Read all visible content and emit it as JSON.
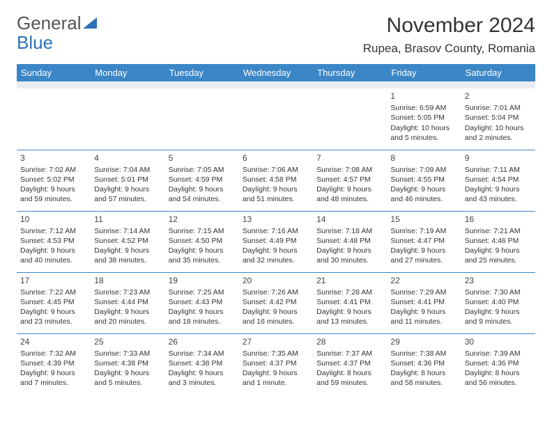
{
  "logo": {
    "part1": "General",
    "part2": "Blue"
  },
  "title": "November 2024",
  "location": "Rupea, Brasov County, Romania",
  "colors": {
    "header_bg": "#3b86c7",
    "header_fg": "#ffffff",
    "spacer_bg": "#e9edf1",
    "cell_border": "#3b86c7",
    "text": "#333333",
    "logo_gray": "#555555",
    "logo_blue": "#2d72b8",
    "background": "#ffffff"
  },
  "weekdays": [
    "Sunday",
    "Monday",
    "Tuesday",
    "Wednesday",
    "Thursday",
    "Friday",
    "Saturday"
  ],
  "rows": [
    [
      null,
      null,
      null,
      null,
      null,
      {
        "n": "1",
        "sunrise": "Sunrise: 6:59 AM",
        "sunset": "Sunset: 5:05 PM",
        "daylight": "Daylight: 10 hours and 5 minutes."
      },
      {
        "n": "2",
        "sunrise": "Sunrise: 7:01 AM",
        "sunset": "Sunset: 5:04 PM",
        "daylight": "Daylight: 10 hours and 2 minutes."
      }
    ],
    [
      {
        "n": "3",
        "sunrise": "Sunrise: 7:02 AM",
        "sunset": "Sunset: 5:02 PM",
        "daylight": "Daylight: 9 hours and 59 minutes."
      },
      {
        "n": "4",
        "sunrise": "Sunrise: 7:04 AM",
        "sunset": "Sunset: 5:01 PM",
        "daylight": "Daylight: 9 hours and 57 minutes."
      },
      {
        "n": "5",
        "sunrise": "Sunrise: 7:05 AM",
        "sunset": "Sunset: 4:59 PM",
        "daylight": "Daylight: 9 hours and 54 minutes."
      },
      {
        "n": "6",
        "sunrise": "Sunrise: 7:06 AM",
        "sunset": "Sunset: 4:58 PM",
        "daylight": "Daylight: 9 hours and 51 minutes."
      },
      {
        "n": "7",
        "sunrise": "Sunrise: 7:08 AM",
        "sunset": "Sunset: 4:57 PM",
        "daylight": "Daylight: 9 hours and 48 minutes."
      },
      {
        "n": "8",
        "sunrise": "Sunrise: 7:09 AM",
        "sunset": "Sunset: 4:55 PM",
        "daylight": "Daylight: 9 hours and 46 minutes."
      },
      {
        "n": "9",
        "sunrise": "Sunrise: 7:11 AM",
        "sunset": "Sunset: 4:54 PM",
        "daylight": "Daylight: 9 hours and 43 minutes."
      }
    ],
    [
      {
        "n": "10",
        "sunrise": "Sunrise: 7:12 AM",
        "sunset": "Sunset: 4:53 PM",
        "daylight": "Daylight: 9 hours and 40 minutes."
      },
      {
        "n": "11",
        "sunrise": "Sunrise: 7:14 AM",
        "sunset": "Sunset: 4:52 PM",
        "daylight": "Daylight: 9 hours and 38 minutes."
      },
      {
        "n": "12",
        "sunrise": "Sunrise: 7:15 AM",
        "sunset": "Sunset: 4:50 PM",
        "daylight": "Daylight: 9 hours and 35 minutes."
      },
      {
        "n": "13",
        "sunrise": "Sunrise: 7:16 AM",
        "sunset": "Sunset: 4:49 PM",
        "daylight": "Daylight: 9 hours and 32 minutes."
      },
      {
        "n": "14",
        "sunrise": "Sunrise: 7:18 AM",
        "sunset": "Sunset: 4:48 PM",
        "daylight": "Daylight: 9 hours and 30 minutes."
      },
      {
        "n": "15",
        "sunrise": "Sunrise: 7:19 AM",
        "sunset": "Sunset: 4:47 PM",
        "daylight": "Daylight: 9 hours and 27 minutes."
      },
      {
        "n": "16",
        "sunrise": "Sunrise: 7:21 AM",
        "sunset": "Sunset: 4:46 PM",
        "daylight": "Daylight: 9 hours and 25 minutes."
      }
    ],
    [
      {
        "n": "17",
        "sunrise": "Sunrise: 7:22 AM",
        "sunset": "Sunset: 4:45 PM",
        "daylight": "Daylight: 9 hours and 23 minutes."
      },
      {
        "n": "18",
        "sunrise": "Sunrise: 7:23 AM",
        "sunset": "Sunset: 4:44 PM",
        "daylight": "Daylight: 9 hours and 20 minutes."
      },
      {
        "n": "19",
        "sunrise": "Sunrise: 7:25 AM",
        "sunset": "Sunset: 4:43 PM",
        "daylight": "Daylight: 9 hours and 18 minutes."
      },
      {
        "n": "20",
        "sunrise": "Sunrise: 7:26 AM",
        "sunset": "Sunset: 4:42 PM",
        "daylight": "Daylight: 9 hours and 16 minutes."
      },
      {
        "n": "21",
        "sunrise": "Sunrise: 7:28 AM",
        "sunset": "Sunset: 4:41 PM",
        "daylight": "Daylight: 9 hours and 13 minutes."
      },
      {
        "n": "22",
        "sunrise": "Sunrise: 7:29 AM",
        "sunset": "Sunset: 4:41 PM",
        "daylight": "Daylight: 9 hours and 11 minutes."
      },
      {
        "n": "23",
        "sunrise": "Sunrise: 7:30 AM",
        "sunset": "Sunset: 4:40 PM",
        "daylight": "Daylight: 9 hours and 9 minutes."
      }
    ],
    [
      {
        "n": "24",
        "sunrise": "Sunrise: 7:32 AM",
        "sunset": "Sunset: 4:39 PM",
        "daylight": "Daylight: 9 hours and 7 minutes."
      },
      {
        "n": "25",
        "sunrise": "Sunrise: 7:33 AM",
        "sunset": "Sunset: 4:38 PM",
        "daylight": "Daylight: 9 hours and 5 minutes."
      },
      {
        "n": "26",
        "sunrise": "Sunrise: 7:34 AM",
        "sunset": "Sunset: 4:38 PM",
        "daylight": "Daylight: 9 hours and 3 minutes."
      },
      {
        "n": "27",
        "sunrise": "Sunrise: 7:35 AM",
        "sunset": "Sunset: 4:37 PM",
        "daylight": "Daylight: 9 hours and 1 minute."
      },
      {
        "n": "28",
        "sunrise": "Sunrise: 7:37 AM",
        "sunset": "Sunset: 4:37 PM",
        "daylight": "Daylight: 8 hours and 59 minutes."
      },
      {
        "n": "29",
        "sunrise": "Sunrise: 7:38 AM",
        "sunset": "Sunset: 4:36 PM",
        "daylight": "Daylight: 8 hours and 58 minutes."
      },
      {
        "n": "30",
        "sunrise": "Sunrise: 7:39 AM",
        "sunset": "Sunset: 4:36 PM",
        "daylight": "Daylight: 8 hours and 56 minutes."
      }
    ]
  ]
}
